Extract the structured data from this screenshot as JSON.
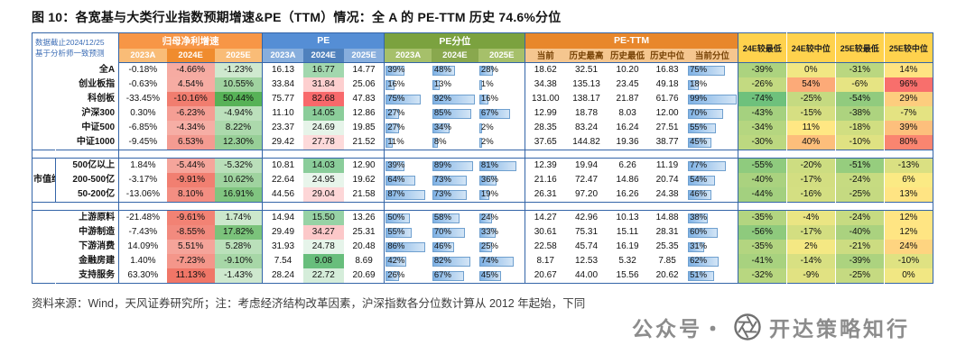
{
  "title": "图 10：各宽基与大类行业指数预期增速&PE（TTM）情况：全 A 的 PE-TTM 历史 74.6%分位",
  "footer": "资料来源：Wind，天风证券研究所；注：考虑经济结构改革因素，沪深指数各分位数计算从 2012 年起始，下同",
  "watermark": {
    "prefix": "公众号・",
    "name": "开达策略知行"
  },
  "colors": {
    "frame": "#3465A8",
    "growth_header": "#F79646",
    "pe_header": "#558ED5",
    "pe_pct_header": "#7BA23F",
    "pe_ttm_header": "#E8872B",
    "heat_header": "#FFD24D",
    "bar_fill": "#7FB2E5",
    "note_blue": "#3B6CB5",
    "heat_low_green": "#63BE7B",
    "heat_mid_yellow": "#FFEB84",
    "heat_high_red": "#F8696B"
  },
  "table": {
    "note_line1": "数据截止2024/12/25",
    "note_line2": "基于分析师一致预测",
    "groups": {
      "growth": "归母净利增速",
      "pe": "PE",
      "pe_pct": "PE分位",
      "pe_ttm": "PE-TTM"
    },
    "sub_headers": {
      "years": [
        "2023A",
        "2024E",
        "2025E"
      ],
      "ttm": [
        "当前",
        "历史最高",
        "历史最低",
        "历史中位",
        "当前分位"
      ]
    },
    "heat_headers": [
      "24E较最低",
      "24E较中位",
      "25E较最低",
      "25E较中位"
    ],
    "row_groups": [
      {
        "label": "",
        "rows": [
          {
            "name": "全A",
            "growth": [
              "-0.18%",
              "-4.66%",
              "-1.23%"
            ],
            "pe": [
              "16.13",
              "16.77",
              "14.77"
            ],
            "pe_pct": [
              39,
              48,
              28
            ],
            "ttm": [
              "18.62",
              "32.51",
              "10.20",
              "16.83"
            ],
            "cur_pct": 75,
            "heat": [
              "-39%",
              "0%",
              "-31%",
              "14%"
            ]
          },
          {
            "name": "创业板指",
            "growth": [
              "-0.63%",
              "4.54%",
              "10.55%"
            ],
            "pe": [
              "33.84",
              "31.84",
              "25.06"
            ],
            "pe_pct": [
              16,
              13,
              1
            ],
            "ttm": [
              "34.38",
              "135.13",
              "23.45",
              "49.18"
            ],
            "cur_pct": 18,
            "heat": [
              "-26%",
              "54%",
              "-6%",
              "96%"
            ]
          },
          {
            "name": "科创板",
            "growth": [
              "-33.45%",
              "-10.16%",
              "50.44%"
            ],
            "pe": [
              "75.77",
              "82.68",
              "47.83"
            ],
            "pe_pct": [
              75,
              92,
              16
            ],
            "ttm": [
              "131.00",
              "138.17",
              "21.87",
              "61.76"
            ],
            "cur_pct": 99,
            "heat": [
              "-74%",
              "-25%",
              "-54%",
              "29%"
            ]
          },
          {
            "name": "沪深300",
            "growth": [
              "0.30%",
              "-6.23%",
              "-4.94%"
            ],
            "pe": [
              "11.10",
              "14.05",
              "12.86"
            ],
            "pe_pct": [
              27,
              85,
              67
            ],
            "ttm": [
              "12.99",
              "18.78",
              "8.03",
              "12.00"
            ],
            "cur_pct": 70,
            "heat": [
              "-43%",
              "-15%",
              "-38%",
              "-7%"
            ]
          },
          {
            "name": "中证500",
            "growth": [
              "-6.85%",
              "-4.34%",
              "8.22%"
            ],
            "pe": [
              "23.37",
              "24.69",
              "19.85"
            ],
            "pe_pct": [
              27,
              34,
              2
            ],
            "ttm": [
              "28.35",
              "83.24",
              "16.24",
              "27.51"
            ],
            "cur_pct": 55,
            "heat": [
              "-34%",
              "11%",
              "-18%",
              "39%"
            ]
          },
          {
            "name": "中证1000",
            "growth": [
              "-9.45%",
              "6.53%",
              "12.30%"
            ],
            "pe": [
              "29.42",
              "27.78",
              "21.52"
            ],
            "pe_pct": [
              11,
              8,
              2
            ],
            "ttm": [
              "37.65",
              "144.82",
              "19.36",
              "38.77"
            ],
            "cur_pct": 45,
            "heat": [
              "-30%",
              "40%",
              "-10%",
              "80%"
            ]
          }
        ]
      },
      {
        "label": "市值维度",
        "rows": [
          {
            "name": "500亿以上",
            "growth": [
              "1.84%",
              "-5.44%",
              "-5.32%"
            ],
            "pe": [
              "10.81",
              "14.03",
              "12.90"
            ],
            "pe_pct": [
              39,
              89,
              81
            ],
            "ttm": [
              "12.39",
              "19.94",
              "6.26",
              "11.19"
            ],
            "cur_pct": 77,
            "heat": [
              "-55%",
              "-20%",
              "-51%",
              "-13%"
            ]
          },
          {
            "name": "200-500亿",
            "growth": [
              "-3.17%",
              "-9.91%",
              "10.62%"
            ],
            "pe": [
              "22.64",
              "24.95",
              "19.62"
            ],
            "pe_pct": [
              64,
              73,
              36
            ],
            "ttm": [
              "21.16",
              "72.47",
              "14.86",
              "20.74"
            ],
            "cur_pct": 54,
            "heat": [
              "-40%",
              "-17%",
              "-24%",
              "6%"
            ]
          },
          {
            "name": "50-200亿",
            "growth": [
              "-13.06%",
              "8.10%",
              "16.91%"
            ],
            "pe": [
              "44.56",
              "29.04",
              "21.58"
            ],
            "pe_pct": [
              87,
              73,
              19
            ],
            "ttm": [
              "26.31",
              "97.20",
              "16.26",
              "24.38"
            ],
            "cur_pct": 46,
            "heat": [
              "-44%",
              "-16%",
              "-25%",
              "13%"
            ]
          }
        ]
      },
      {
        "label": "",
        "rows": [
          {
            "name": "上游原料",
            "growth": [
              "-21.48%",
              "-9.61%",
              "1.74%"
            ],
            "pe": [
              "14.94",
              "15.50",
              "13.26"
            ],
            "pe_pct": [
              50,
              58,
              24
            ],
            "ttm": [
              "14.27",
              "42.96",
              "10.13",
              "14.88"
            ],
            "cur_pct": 38,
            "heat": [
              "-35%",
              "-4%",
              "-24%",
              "12%"
            ]
          },
          {
            "name": "中游制造",
            "growth": [
              "-7.43%",
              "-8.55%",
              "17.82%"
            ],
            "pe": [
              "29.49",
              "34.27",
              "25.31"
            ],
            "pe_pct": [
              55,
              70,
              33
            ],
            "ttm": [
              "30.61",
              "75.31",
              "15.11",
              "28.31"
            ],
            "cur_pct": 60,
            "heat": [
              "-56%",
              "-17%",
              "-40%",
              "12%"
            ]
          },
          {
            "name": "下游消费",
            "growth": [
              "14.09%",
              "5.51%",
              "5.28%"
            ],
            "pe": [
              "31.93",
              "24.78",
              "20.48"
            ],
            "pe_pct": [
              86,
              46,
              25
            ],
            "ttm": [
              "22.58",
              "45.74",
              "16.19",
              "25.35"
            ],
            "cur_pct": 31,
            "heat": [
              "-35%",
              "2%",
              "-21%",
              "24%"
            ]
          },
          {
            "name": "金融房建",
            "growth": [
              "1.40%",
              "-7.23%",
              "-9.10%"
            ],
            "pe": [
              "7.54",
              "9.08",
              "8.69"
            ],
            "pe_pct": [
              42,
              82,
              74
            ],
            "ttm": [
              "8.17",
              "12.53",
              "5.32",
              "7.85"
            ],
            "cur_pct": 62,
            "heat": [
              "-41%",
              "-14%",
              "-39%",
              "-10%"
            ]
          },
          {
            "name": "支持服务",
            "growth": [
              "63.30%",
              "11.13%",
              "-1.43%"
            ],
            "pe": [
              "28.24",
              "22.72",
              "20.69"
            ],
            "pe_pct": [
              26,
              67,
              45
            ],
            "ttm": [
              "20.67",
              "44.00",
              "15.56",
              "20.62"
            ],
            "cur_pct": 51,
            "heat": [
              "-32%",
              "-9%",
              "-25%",
              "0%"
            ]
          }
        ]
      }
    ]
  }
}
